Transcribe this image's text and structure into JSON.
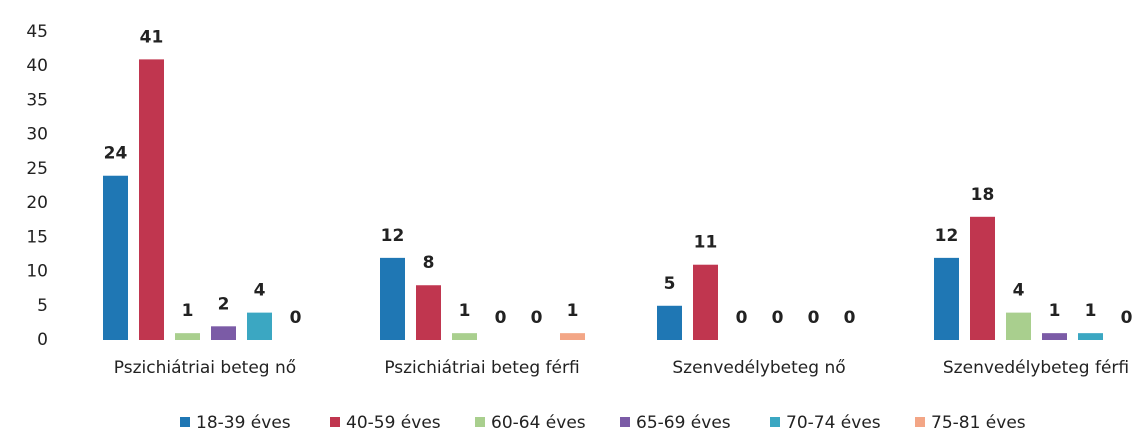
{
  "chart_data": {
    "type": "bar",
    "categories": [
      "Pszichiátriai beteg nő",
      "Pszichiátriai beteg férfi",
      "Szenvedélybeteg nő",
      "Szenvedélybeteg férfi"
    ],
    "series": [
      {
        "name": "18-39 éves",
        "color": "#1f77b4",
        "values": [
          24,
          12,
          5,
          12
        ]
      },
      {
        "name": "40-59 éves",
        "color": "#c0364f",
        "values": [
          41,
          8,
          11,
          18
        ]
      },
      {
        "name": "60-64 éves",
        "color": "#a9cf8e",
        "values": [
          1,
          1,
          0,
          4
        ]
      },
      {
        "name": "65-69 éves",
        "color": "#7b5ba6",
        "values": [
          2,
          0,
          0,
          1
        ]
      },
      {
        "name": "70-74 éves",
        "color": "#3ba7c2",
        "values": [
          4,
          0,
          0,
          1
        ]
      },
      {
        "name": "75-81 éves",
        "color": "#f3a686",
        "values": [
          0,
          1,
          0,
          0
        ]
      }
    ],
    "ylim": [
      0,
      45
    ],
    "yticks": [
      0,
      5,
      10,
      15,
      20,
      25,
      30,
      35,
      40,
      45
    ],
    "legend": "bottom"
  }
}
